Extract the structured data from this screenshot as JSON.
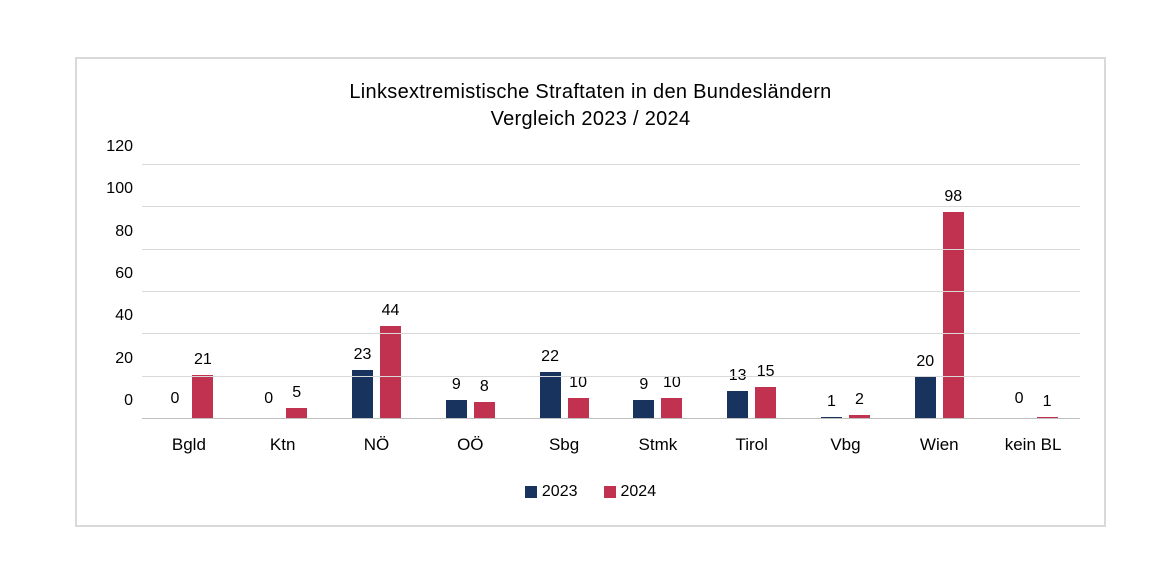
{
  "title": {
    "line1": "Linksextremistische Straftaten in den Bundesländern",
    "line2": "Vergleich 2023 / 2024"
  },
  "chart_data": {
    "type": "bar",
    "title": "Linksextremistische Straftaten in den Bundesländern Vergleich 2023 / 2024",
    "categories": [
      "Bgld",
      "Ktn",
      "NÖ",
      "OÖ",
      "Sbg",
      "Stmk",
      "Tirol",
      "Vbg",
      "Wien",
      "kein BL"
    ],
    "series": [
      {
        "name": "2023",
        "color": "#18345E",
        "values": [
          0,
          0,
          23,
          9,
          22,
          9,
          13,
          1,
          20,
          0
        ]
      },
      {
        "name": "2024",
        "color": "#C0324F",
        "values": [
          21,
          5,
          44,
          8,
          10,
          10,
          15,
          2,
          98,
          1
        ]
      }
    ],
    "xlabel": "",
    "ylabel": "",
    "ylim": [
      0,
      120
    ],
    "yticks": [
      0,
      20,
      40,
      60,
      80,
      100,
      120
    ],
    "grid": true,
    "gridline_color": "#D9D9D9",
    "axis_line_color": "#BFBFBF",
    "data_labels": true,
    "legend_position": "bottom"
  }
}
